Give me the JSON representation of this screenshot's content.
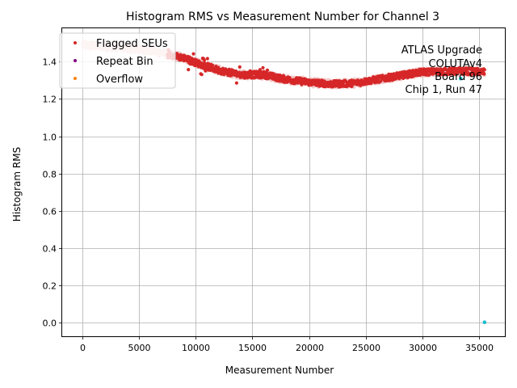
{
  "chart_data": {
    "type": "scatter",
    "title": "Histogram RMS vs Measurement Number for Channel 3",
    "xlabel": "Measurement Number",
    "ylabel": "Histogram RMS",
    "xlim": [
      -1800,
      37300
    ],
    "ylim": [
      -0.075,
      1.58
    ],
    "x_ticks": [
      0,
      5000,
      10000,
      15000,
      20000,
      25000,
      30000,
      35000
    ],
    "y_ticks": [
      0.0,
      0.2,
      0.4,
      0.6,
      0.8,
      1.0,
      1.2,
      1.4
    ],
    "x_tick_labels": [
      "0",
      "5000",
      "10000",
      "15000",
      "20000",
      "25000",
      "30000",
      "35000"
    ],
    "y_tick_labels": [
      "0.0",
      "0.2",
      "0.4",
      "0.6",
      "0.8",
      "1.0",
      "1.2",
      "1.4"
    ],
    "grid": true,
    "legend_position": "upper-left",
    "annotation": [
      "ATLAS Upgrade",
      "COLUTAv4",
      "Board 96",
      "Chip 1, Run 47"
    ],
    "colors": {
      "trend_points": "#f2c9c9",
      "flagged": "#d62728",
      "repeat": "#800080",
      "overflow": "#ff7f0e",
      "outlier": "#17becf",
      "grid": "#b0b0b0"
    },
    "trend_knots": [
      [
        0,
        1.49
      ],
      [
        3000,
        1.48
      ],
      [
        6000,
        1.46
      ],
      [
        9000,
        1.42
      ],
      [
        10000,
        1.395
      ],
      [
        12000,
        1.355
      ],
      [
        14000,
        1.33
      ],
      [
        16000,
        1.33
      ],
      [
        18000,
        1.305
      ],
      [
        20000,
        1.29
      ],
      [
        22000,
        1.28
      ],
      [
        24000,
        1.285
      ],
      [
        26000,
        1.305
      ],
      [
        28000,
        1.325
      ],
      [
        30000,
        1.345
      ],
      [
        33500,
        1.35
      ],
      [
        35500,
        1.345
      ]
    ],
    "series": [
      {
        "name": "Flagged SEUs",
        "color": "#d62728",
        "x_range": [
          7500,
          35500
        ],
        "points": [
          [
            33400,
            1.31
          ]
        ]
      },
      {
        "name": "Repeat Bin",
        "color": "#800080",
        "points": []
      },
      {
        "name": "Overflow",
        "color": "#ff7f0e",
        "points": []
      }
    ],
    "outliers": [
      [
        33400,
        1.31
      ],
      [
        35500,
        0.0
      ]
    ]
  }
}
